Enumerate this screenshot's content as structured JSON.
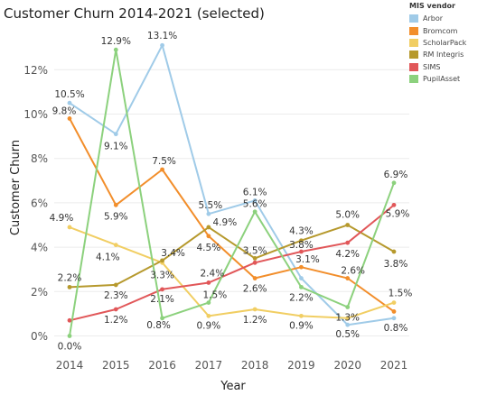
{
  "chart_data": {
    "type": "line",
    "title": "Customer Churn 2014-2021 (selected)",
    "xlabel": "Year",
    "ylabel": "Customer Churn",
    "x": [
      "2014",
      "2015",
      "2016",
      "2017",
      "2018",
      "2019",
      "2020",
      "2021"
    ],
    "ylim": [
      -0.2,
      13.9
    ],
    "yticks": [
      0,
      2,
      4,
      6,
      8,
      10,
      12
    ],
    "ytick_labels": [
      "0%",
      "2%",
      "4%",
      "6%",
      "8%",
      "10%",
      "12%"
    ],
    "grid": "horizontal",
    "legend": {
      "title": "MIS vendor",
      "position": "top-right"
    },
    "series": [
      {
        "name": "Arbor",
        "color": "#a0cbe8",
        "values": [
          10.5,
          9.1,
          13.1,
          5.5,
          6.1,
          2.6,
          0.5,
          0.8
        ],
        "labels": [
          "10.5%",
          "9.1%",
          "13.1%",
          "5.5%",
          "6.1%",
          "",
          "0.5%",
          "0.8%"
        ]
      },
      {
        "name": "Bromcom",
        "color": "#f28e2b",
        "values": [
          9.8,
          5.9,
          7.5,
          4.5,
          2.6,
          3.1,
          2.6,
          1.1
        ],
        "labels": [
          "9.8%",
          "5.9%",
          "7.5%",
          "4.5%",
          "2.6%",
          "3.1%",
          "2.6%",
          ""
        ]
      },
      {
        "name": "ScholarPack",
        "color": "#f1ce63",
        "values": [
          4.9,
          4.1,
          3.3,
          0.9,
          1.2,
          0.9,
          0.8,
          1.5
        ],
        "labels": [
          "4.9%",
          "4.1%",
          "3.3%",
          "0.9%",
          "1.2%",
          "0.9%",
          "",
          "1.5%"
        ]
      },
      {
        "name": "RM Integris",
        "color": "#b6992d",
        "values": [
          2.2,
          2.3,
          3.4,
          4.9,
          3.5,
          4.3,
          5.0,
          3.8
        ],
        "labels": [
          "2.2%",
          "2.3%",
          "3.4%",
          "4.9%",
          "3.5%",
          "4.3%",
          "5.0%",
          "3.8%"
        ]
      },
      {
        "name": "SIMS",
        "color": "#e15759",
        "values": [
          0.7,
          1.2,
          2.1,
          2.4,
          3.3,
          3.8,
          4.2,
          5.9
        ],
        "labels": [
          "",
          "1.2%",
          "2.1%",
          "2.4%",
          "",
          "3.8%",
          "4.2%",
          "5.9%"
        ]
      },
      {
        "name": "PupilAsset",
        "color": "#8cd17d",
        "values": [
          0.0,
          12.9,
          0.8,
          1.5,
          5.6,
          2.2,
          1.3,
          6.9
        ],
        "labels": [
          "0.0%",
          "12.9%",
          "0.8%",
          "1.5%",
          "5.6%",
          "2.2%",
          "1.3%",
          "6.9%"
        ]
      }
    ]
  }
}
